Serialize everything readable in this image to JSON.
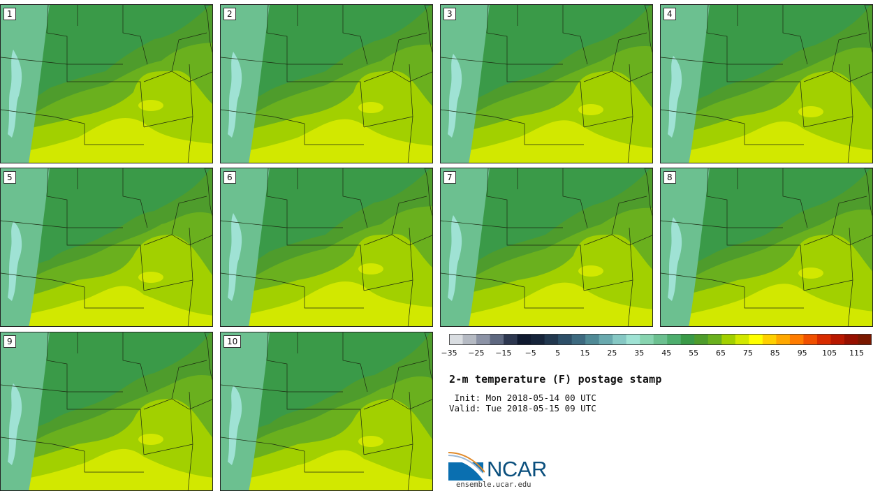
{
  "panels": [
    {
      "label": "1"
    },
    {
      "label": "2"
    },
    {
      "label": "3"
    },
    {
      "label": "4"
    },
    {
      "label": "5"
    },
    {
      "label": "6"
    },
    {
      "label": "7"
    },
    {
      "label": "8"
    },
    {
      "label": "9"
    },
    {
      "label": "10"
    }
  ],
  "colorbar": {
    "ticks": [
      "−35",
      "−25",
      "−15",
      "−5",
      "5",
      "15",
      "25",
      "35",
      "45",
      "55",
      "65",
      "75",
      "85",
      "95",
      "105",
      "115"
    ],
    "colors": [
      "#d9dde1",
      "#b5bac3",
      "#8c93a6",
      "#5e6880",
      "#2d3750",
      "#101a30",
      "#16243a",
      "#22384f",
      "#2d4f68",
      "#3d6a80",
      "#508a96",
      "#69a9ae",
      "#86c8c4",
      "#9fe2d4",
      "#88d4b0",
      "#6cc090",
      "#4eae6e",
      "#3a9a48",
      "#4e9c2c",
      "#6ab01e",
      "#a2d000",
      "#d2e800",
      "#ffff00",
      "#ffd000",
      "#ffa800",
      "#ff7c00",
      "#f05000",
      "#d82c00",
      "#b81800",
      "#961000",
      "#7a1800"
    ]
  },
  "title": "2-m temperature (F) postage stamp",
  "init": " Init: Mon 2018-05-14 00 UTC",
  "valid": "Valid: Tue 2018-05-15 09 UTC",
  "logo": {
    "name": "NCAR",
    "url": "ensemble.ucar.edu"
  },
  "map_colors": {
    "cold_peak": "#9fe2d4",
    "mountain": "#6cc090",
    "green_dark": "#3a9a48",
    "green": "#4e9c2c",
    "green_mid": "#6ab01e",
    "yellow_green": "#a2d000",
    "lime": "#d2e800"
  }
}
